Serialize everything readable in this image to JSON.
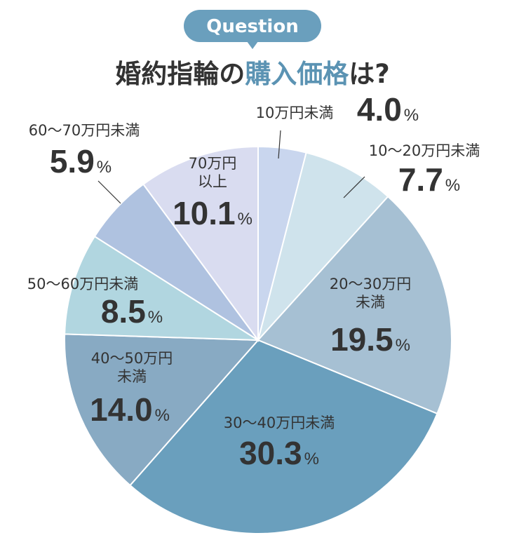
{
  "badge": "Question",
  "chart_data": {
    "type": "pie",
    "title_segments": [
      {
        "text": "婚約指輪の",
        "color": "#333333"
      },
      {
        "text": "購入価格",
        "color": "#5b93b3"
      },
      {
        "text": "は?",
        "color": "#333333"
      }
    ],
    "categories": [
      "10万円未満",
      "10〜20万円未満",
      "20〜30万円\n未満",
      "30〜40万円未満",
      "40〜50万円\n未満",
      "50〜60万円未満",
      "60〜70万円未満",
      "70万円\n以上"
    ],
    "values": [
      4.0,
      7.7,
      19.5,
      30.3,
      14.0,
      8.5,
      5.9,
      10.1
    ],
    "value_labels": [
      "4.0%",
      "7.7%",
      "19.5%",
      "30.3%",
      "14.0%",
      "8.5%",
      "5.9%",
      "10.1%"
    ],
    "colors": [
      "#c9d6ee",
      "#cfe3ec",
      "#a6c0d3",
      "#6a9fbd",
      "#88aac3",
      "#b1d6e0",
      "#afc2e0",
      "#d9dcf0"
    ]
  }
}
